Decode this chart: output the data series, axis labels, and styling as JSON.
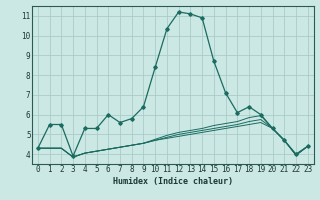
{
  "xlabel": "Humidex (Indice chaleur)",
  "bg_color": "#cce8e4",
  "grid_color": "#aaccc8",
  "line_color": "#1a6b60",
  "xlim": [
    -0.5,
    23.5
  ],
  "ylim": [
    3.5,
    11.5
  ],
  "yticks": [
    4,
    5,
    6,
    7,
    8,
    9,
    10,
    11
  ],
  "xticks": [
    0,
    1,
    2,
    3,
    4,
    5,
    6,
    7,
    8,
    9,
    10,
    11,
    12,
    13,
    14,
    15,
    16,
    17,
    18,
    19,
    20,
    21,
    22,
    23
  ],
  "line1_x": [
    0,
    1,
    2,
    3,
    4,
    5,
    6,
    7,
    8,
    9,
    10,
    11,
    12,
    13,
    14,
    15,
    16,
    17,
    18,
    19,
    20,
    21,
    22,
    23
  ],
  "line1_y": [
    4.3,
    5.5,
    5.5,
    3.9,
    5.3,
    5.3,
    6.0,
    5.6,
    5.8,
    6.4,
    8.4,
    10.35,
    11.2,
    11.1,
    10.9,
    8.7,
    7.1,
    6.1,
    6.4,
    6.0,
    5.3,
    4.7,
    4.0,
    4.4
  ],
  "line2_x": [
    0,
    1,
    2,
    3,
    4,
    5,
    6,
    7,
    8,
    9,
    10,
    11,
    12,
    13,
    14,
    15,
    16,
    17,
    18,
    19,
    20,
    21,
    22,
    23
  ],
  "line2_y": [
    4.3,
    4.3,
    4.3,
    3.85,
    4.05,
    4.15,
    4.25,
    4.35,
    4.45,
    4.55,
    4.7,
    4.8,
    4.9,
    5.0,
    5.1,
    5.2,
    5.3,
    5.4,
    5.5,
    5.6,
    5.3,
    4.7,
    3.95,
    4.4
  ],
  "line3_x": [
    0,
    1,
    2,
    3,
    4,
    5,
    6,
    7,
    8,
    9,
    10,
    11,
    12,
    13,
    14,
    15,
    16,
    17,
    18,
    19,
    20,
    21,
    22,
    23
  ],
  "line3_y": [
    4.3,
    4.3,
    4.3,
    3.85,
    4.05,
    4.15,
    4.25,
    4.35,
    4.45,
    4.55,
    4.7,
    4.85,
    5.0,
    5.1,
    5.2,
    5.3,
    5.4,
    5.5,
    5.65,
    5.75,
    5.3,
    4.7,
    3.95,
    4.4
  ],
  "line4_x": [
    0,
    1,
    2,
    3,
    4,
    5,
    6,
    7,
    8,
    9,
    10,
    11,
    12,
    13,
    14,
    15,
    16,
    17,
    18,
    19,
    20,
    21,
    22,
    23
  ],
  "line4_y": [
    4.3,
    4.3,
    4.3,
    3.85,
    4.05,
    4.15,
    4.25,
    4.35,
    4.45,
    4.55,
    4.75,
    4.95,
    5.1,
    5.2,
    5.3,
    5.45,
    5.55,
    5.65,
    5.85,
    5.95,
    5.3,
    4.7,
    3.95,
    4.4
  ]
}
